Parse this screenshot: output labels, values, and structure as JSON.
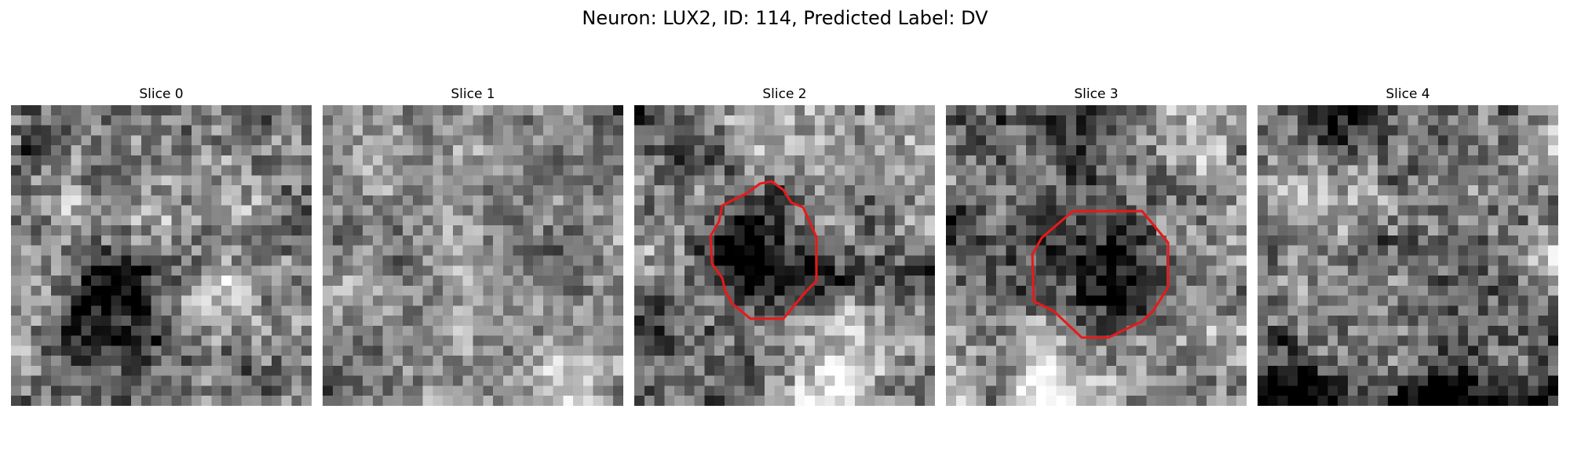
{
  "figure": {
    "title": "Neuron: LUX2, ID: 114, Predicted Label: DV"
  },
  "panels": [
    {
      "title": "Slice 0",
      "seed": 11,
      "pattern": "dark-blob-lower-left",
      "has_outline": false
    },
    {
      "title": "Slice 1",
      "seed": 23,
      "pattern": "noisy-uniform",
      "has_outline": false
    },
    {
      "title": "Slice 2",
      "seed": 37,
      "pattern": "dark-blob-center",
      "has_outline": true
    },
    {
      "title": "Slice 3",
      "seed": 51,
      "pattern": "dark-blob-center-right",
      "has_outline": true
    },
    {
      "title": "Slice 4",
      "seed": 67,
      "pattern": "banded-dark-bottom",
      "has_outline": false
    }
  ],
  "outline_color": "#e8191a",
  "colormap": "gray"
}
